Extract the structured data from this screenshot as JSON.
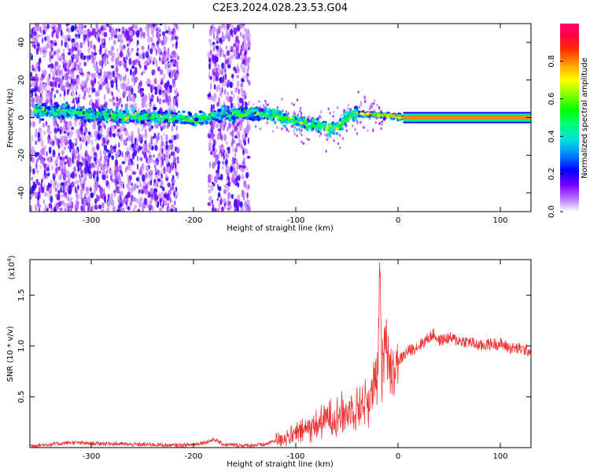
{
  "title": "C2E3.2024.028.23.53.G04",
  "chart_data": [
    {
      "type": "heatmap",
      "xlabel": "Height of straight line (km)",
      "ylabel": "Frequency (Hz)",
      "xlim": [
        -360,
        130
      ],
      "ylim": [
        -50,
        50
      ],
      "xticks": [
        -300,
        -200,
        -100,
        0,
        100
      ],
      "yticks": [
        -40,
        -20,
        0,
        20,
        40
      ],
      "grid": false,
      "description_of_structure": {
        "ridge": [
          {
            "x": -350,
            "y": 3.5
          },
          {
            "x": -320,
            "y": 3
          },
          {
            "x": -300,
            "y": 1.5
          },
          {
            "x": -270,
            "y": 1
          },
          {
            "x": -240,
            "y": 0.5
          },
          {
            "x": -215,
            "y": 0
          },
          {
            "x": -200,
            "y": -1.5
          },
          {
            "x": -180,
            "y": 1
          },
          {
            "x": -160,
            "y": 2
          },
          {
            "x": -140,
            "y": 2.5
          },
          {
            "x": -120,
            "y": 1
          },
          {
            "x": -100,
            "y": -2
          },
          {
            "x": -80,
            "y": -4
          },
          {
            "x": -60,
            "y": -6
          },
          {
            "x": -50,
            "y": 0
          },
          {
            "x": -40,
            "y": 2
          },
          {
            "x": -20,
            "y": 1.5
          },
          {
            "x": 0,
            "y": 0.5
          },
          {
            "x": 20,
            "y": 0
          },
          {
            "x": 130,
            "y": 0
          }
        ],
        "broadband_regions": [
          [
            -360,
            -215
          ],
          [
            -185,
            -145
          ]
        ]
      },
      "colorbar": {
        "label": "Normalized spectral amplitude",
        "range": [
          0,
          1
        ],
        "ticks": [
          0.0,
          0.2,
          0.4,
          0.6,
          0.8
        ]
      }
    },
    {
      "type": "line",
      "xlabel": "Height of straight line (km)",
      "ylabel": "SNR (10 * v/v)",
      "exponent_label": "(x10",
      "exponent_sup": "4",
      "exponent_close": ")",
      "xlim": [
        -360,
        130
      ],
      "ylim": [
        0,
        1.85
      ],
      "xticks": [
        -300,
        -200,
        -100,
        0,
        100
      ],
      "yticks": [
        0.5,
        1.0,
        1.5
      ],
      "yticklabels": [
        "0.5",
        "1.0",
        "1.5"
      ],
      "grid": false,
      "series": [
        {
          "color": "#ee3333",
          "x": [
            -360,
            -340,
            -320,
            -300,
            -280,
            -260,
            -240,
            -220,
            -200,
            -185,
            -180,
            -170,
            -150,
            -130,
            -120,
            -110,
            -100,
            -90,
            -80,
            -70,
            -60,
            -50,
            -40,
            -35,
            -30,
            -25,
            -20,
            -18,
            -16,
            -14,
            -12,
            -10,
            -5,
            0,
            10,
            20,
            30,
            35,
            40,
            50,
            60,
            70,
            80,
            90,
            100,
            110,
            120,
            130
          ],
          "y": [
            0.02,
            0.03,
            0.05,
            0.04,
            0.04,
            0.03,
            0.03,
            0.02,
            0.03,
            0.06,
            0.08,
            0.03,
            0.02,
            0.03,
            0.07,
            0.1,
            0.13,
            0.18,
            0.22,
            0.28,
            0.32,
            0.35,
            0.4,
            0.45,
            0.45,
            0.55,
            0.65,
            1.85,
            0.7,
            0.9,
            1.3,
            0.85,
            0.8,
            0.85,
            0.95,
            1.0,
            1.08,
            1.12,
            1.05,
            1.08,
            1.05,
            1.04,
            1.0,
            1.02,
            1.02,
            0.98,
            0.97,
            0.95
          ]
        }
      ]
    }
  ]
}
